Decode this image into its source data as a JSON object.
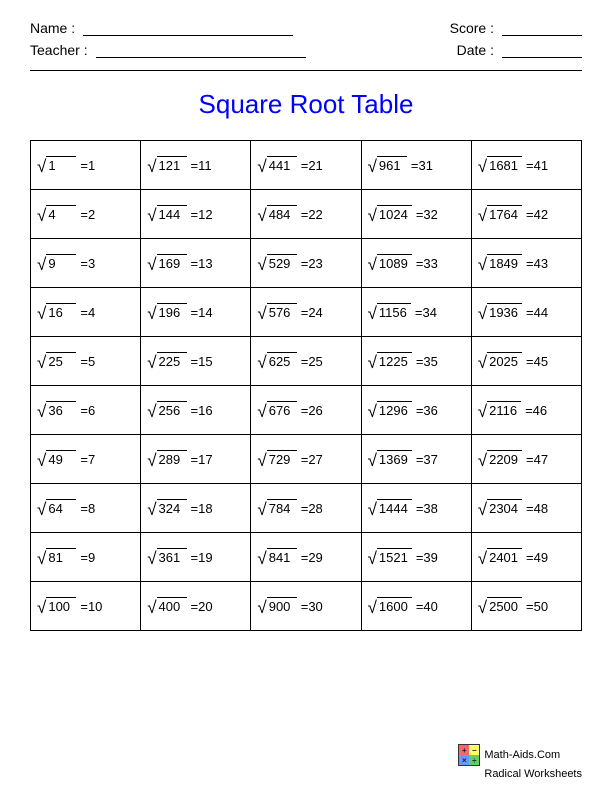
{
  "header": {
    "name_label": "Name :",
    "teacher_label": "Teacher :",
    "score_label": "Score :",
    "date_label": "Date :"
  },
  "title": "Square Root Table",
  "title_color": "#0000ff",
  "table": {
    "type": "table",
    "columns": 5,
    "rows": 10,
    "border_color": "#000000",
    "background_color": "#ffffff",
    "cells": [
      [
        {
          "radicand": "1",
          "result": "1"
        },
        {
          "radicand": "121",
          "result": "11"
        },
        {
          "radicand": "441",
          "result": "21"
        },
        {
          "radicand": "961",
          "result": "31"
        },
        {
          "radicand": "1681",
          "result": "41"
        }
      ],
      [
        {
          "radicand": "4",
          "result": "2"
        },
        {
          "radicand": "144",
          "result": "12"
        },
        {
          "radicand": "484",
          "result": "22"
        },
        {
          "radicand": "1024",
          "result": "32"
        },
        {
          "radicand": "1764",
          "result": "42"
        }
      ],
      [
        {
          "radicand": "9",
          "result": "3"
        },
        {
          "radicand": "169",
          "result": "13"
        },
        {
          "radicand": "529",
          "result": "23"
        },
        {
          "radicand": "1089",
          "result": "33"
        },
        {
          "radicand": "1849",
          "result": "43"
        }
      ],
      [
        {
          "radicand": "16",
          "result": "4"
        },
        {
          "radicand": "196",
          "result": "14"
        },
        {
          "radicand": "576",
          "result": "24"
        },
        {
          "radicand": "1156",
          "result": "34"
        },
        {
          "radicand": "1936",
          "result": "44"
        }
      ],
      [
        {
          "radicand": "25",
          "result": "5"
        },
        {
          "radicand": "225",
          "result": "15"
        },
        {
          "radicand": "625",
          "result": "25"
        },
        {
          "radicand": "1225",
          "result": "35"
        },
        {
          "radicand": "2025",
          "result": "45"
        }
      ],
      [
        {
          "radicand": "36",
          "result": "6"
        },
        {
          "radicand": "256",
          "result": "16"
        },
        {
          "radicand": "676",
          "result": "26"
        },
        {
          "radicand": "1296",
          "result": "36"
        },
        {
          "radicand": "2116",
          "result": "46"
        }
      ],
      [
        {
          "radicand": "49",
          "result": "7"
        },
        {
          "radicand": "289",
          "result": "17"
        },
        {
          "radicand": "729",
          "result": "27"
        },
        {
          "radicand": "1369",
          "result": "37"
        },
        {
          "radicand": "2209",
          "result": "47"
        }
      ],
      [
        {
          "radicand": "64",
          "result": "8"
        },
        {
          "radicand": "324",
          "result": "18"
        },
        {
          "radicand": "784",
          "result": "28"
        },
        {
          "radicand": "1444",
          "result": "38"
        },
        {
          "radicand": "2304",
          "result": "48"
        }
      ],
      [
        {
          "radicand": "81",
          "result": "9"
        },
        {
          "radicand": "361",
          "result": "19"
        },
        {
          "radicand": "841",
          "result": "29"
        },
        {
          "radicand": "1521",
          "result": "39"
        },
        {
          "radicand": "2401",
          "result": "49"
        }
      ],
      [
        {
          "radicand": "100",
          "result": "10"
        },
        {
          "radicand": "400",
          "result": "20"
        },
        {
          "radicand": "900",
          "result": "30"
        },
        {
          "radicand": "1600",
          "result": "40"
        },
        {
          "radicand": "2500",
          "result": "50"
        }
      ]
    ],
    "equals": " = "
  },
  "footer": {
    "site": "Math-Aids.Com",
    "subtitle": "Radical Worksheets",
    "logo_colors": [
      "#ff6666",
      "#ffff66",
      "#6699ff",
      "#66cc66"
    ],
    "logo_symbols": [
      "+",
      "−",
      "×",
      "÷"
    ]
  }
}
